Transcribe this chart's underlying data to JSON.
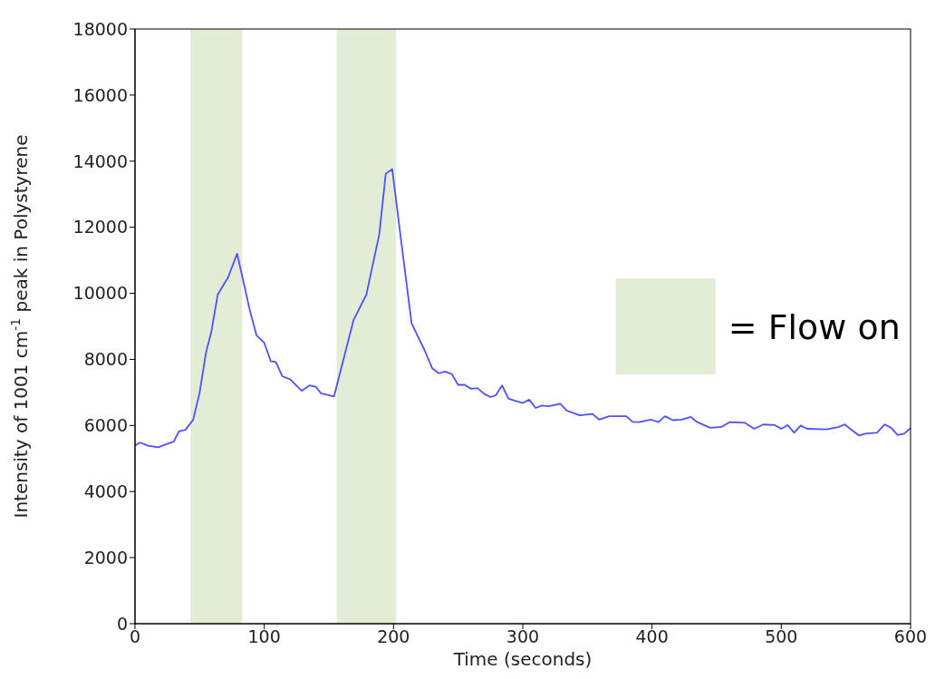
{
  "chart_data": {
    "type": "line",
    "xlabel": "Time (seconds)",
    "ylabel": "Intensity of 1001 cm$^{-1}$ peak in Polystyrene",
    "x": [
      0,
      4,
      10,
      18,
      24,
      30,
      34,
      39,
      45,
      50,
      55,
      59,
      64,
      72,
      79,
      89,
      94,
      100,
      105,
      109,
      114,
      120,
      129,
      135,
      140,
      144,
      154,
      169,
      179,
      189,
      194,
      199,
      206,
      214,
      224,
      230,
      235,
      240,
      245,
      250,
      255,
      260,
      265,
      270,
      275,
      279,
      284,
      289,
      300,
      305,
      310,
      315,
      320,
      329,
      334,
      344,
      354,
      359,
      367,
      380,
      385,
      390,
      399,
      405,
      410,
      416,
      423,
      430,
      435,
      445,
      454,
      460,
      472,
      479,
      486,
      495,
      500,
      505,
      510,
      515,
      520,
      535,
      544,
      549,
      554,
      560,
      566,
      574,
      580,
      585,
      590,
      595,
      600
    ],
    "series": [
      {
        "color": "#5050ff",
        "values": [
          5390,
          5480,
          5390,
          5340,
          5430,
          5510,
          5820,
          5870,
          6170,
          6990,
          8220,
          8820,
          9960,
          10480,
          11200,
          9460,
          8730,
          8500,
          7950,
          7920,
          7490,
          7400,
          7050,
          7210,
          7170,
          6970,
          6880,
          9180,
          9960,
          11790,
          13620,
          13760,
          11560,
          9090,
          8280,
          7730,
          7580,
          7630,
          7560,
          7230,
          7230,
          7110,
          7130,
          6960,
          6860,
          6910,
          7210,
          6810,
          6680,
          6780,
          6530,
          6600,
          6580,
          6660,
          6450,
          6310,
          6350,
          6180,
          6280,
          6280,
          6110,
          6100,
          6180,
          6100,
          6280,
          6160,
          6180,
          6260,
          6100,
          5930,
          5960,
          6100,
          6080,
          5900,
          6030,
          6010,
          5900,
          6010,
          5780,
          6000,
          5900,
          5880,
          5950,
          6030,
          5880,
          5700,
          5760,
          5780,
          6030,
          5930,
          5710,
          5750,
          5920
        ]
      }
    ],
    "xlim": [
      0,
      600
    ],
    "xticks": [
      0,
      100,
      200,
      300,
      400,
      500,
      600
    ],
    "ylim": [
      0,
      18000
    ],
    "yticks": [
      0,
      2000,
      4000,
      6000,
      8000,
      10000,
      12000,
      14000,
      16000,
      18000
    ],
    "marker": "none",
    "line_style": "solid",
    "bands": [
      {
        "axis": "x",
        "from": 43,
        "to": 83,
        "color": "#e3ecd5"
      },
      {
        "axis": "x",
        "from": 156,
        "to": 202,
        "color": "#e3ecd5"
      }
    ],
    "annotations": [
      "= Flow on"
    ]
  }
}
